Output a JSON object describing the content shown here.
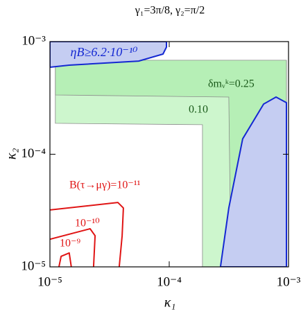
{
  "chart_data": {
    "type": "contour",
    "title": "γ₁=3π/8, γ₂=π/2",
    "xlabel": "κ₁",
    "ylabel": "κ₂",
    "xscale": "log",
    "yscale": "log",
    "xlim": [
      1e-05,
      0.001
    ],
    "ylim": [
      1e-05,
      0.001
    ],
    "xticks": [
      {
        "value": 1e-05,
        "label": "10⁻⁵"
      },
      {
        "value": 0.0001,
        "label": "10⁻⁴"
      },
      {
        "value": 0.001,
        "label": "10⁻³"
      }
    ],
    "yticks": [
      {
        "value": 1e-05,
        "label": "10⁻⁵"
      },
      {
        "value": 0.0001,
        "label": "10⁻⁴"
      },
      {
        "value": 0.001,
        "label": "10⁻³"
      }
    ],
    "regions": [
      {
        "name": "0.10",
        "color": "#cdf6cd",
        "edge": "#8a8a8a",
        "x": [
          1.11e-05,
          0.00019,
          0.00019,
          0.00096,
          0.00096,
          1.11e-05
        ],
        "y": [
          0.000188,
          0.000183,
          1e-05,
          1e-05,
          0.000683,
          0.000683
        ]
      },
      {
        "name": "δmᵥᵏ=0.25",
        "color": "#b6efb6",
        "edge": "#8a8a8a",
        "x": [
          1.11e-05,
          0.000316,
          0.000329,
          0.00096,
          0.00096,
          1.11e-05
        ],
        "y": [
          0.000336,
          0.000322,
          1e-05,
          1e-05,
          0.000683,
          0.000683
        ]
      },
      {
        "name": "ηB≥6.2·10⁻¹⁰",
        "color": "#c5cdf2",
        "edge": "#1428d2",
        "x": [
          1e-05,
          9.48e-05,
          9.48e-05,
          8.87e-05,
          5.55e-05,
          1.45e-05,
          1e-05
        ],
        "y": [
          0.001,
          0.001,
          0.000893,
          0.000775,
          0.000672,
          0.000618,
          0.000592
        ]
      },
      {
        "color": "#c5cdf2",
        "edge": "#1428d2",
        "x": [
          0.000269,
          0.000316,
          0.000413,
          0.000618,
          0.000786,
          0.00096,
          0.00096
        ],
        "y": [
          1e-05,
          3.33e-05,
          0.000137,
          0.000279,
          0.000322,
          0.000287,
          1e-05
        ]
      }
    ],
    "contours": [
      {
        "name": "B(τ→μγ)=10⁻¹¹",
        "color": "#e01414",
        "x": [
          1e-05,
          3.71e-05,
          4.13e-05,
          4.03e-05,
          3.81e-05
        ],
        "y": [
          3.2e-05,
          3.73e-05,
          3.33e-05,
          1.89e-05,
          1e-05
        ]
      },
      {
        "name": "10⁻¹⁰",
        "color": "#e01414",
        "x": [
          1e-05,
          2.17e-05,
          2.39e-05,
          2.32e-05
        ],
        "y": [
          1.76e-05,
          2.18e-05,
          1.89e-05,
          1e-05
        ]
      },
      {
        "name": "10⁻⁹",
        "color": "#e01414",
        "x": [
          1.19e-05,
          1.24e-05,
          1.45e-05,
          1.51e-05
        ],
        "y": [
          1e-05,
          1.24e-05,
          1.33e-05,
          1e-05
        ]
      }
    ]
  }
}
